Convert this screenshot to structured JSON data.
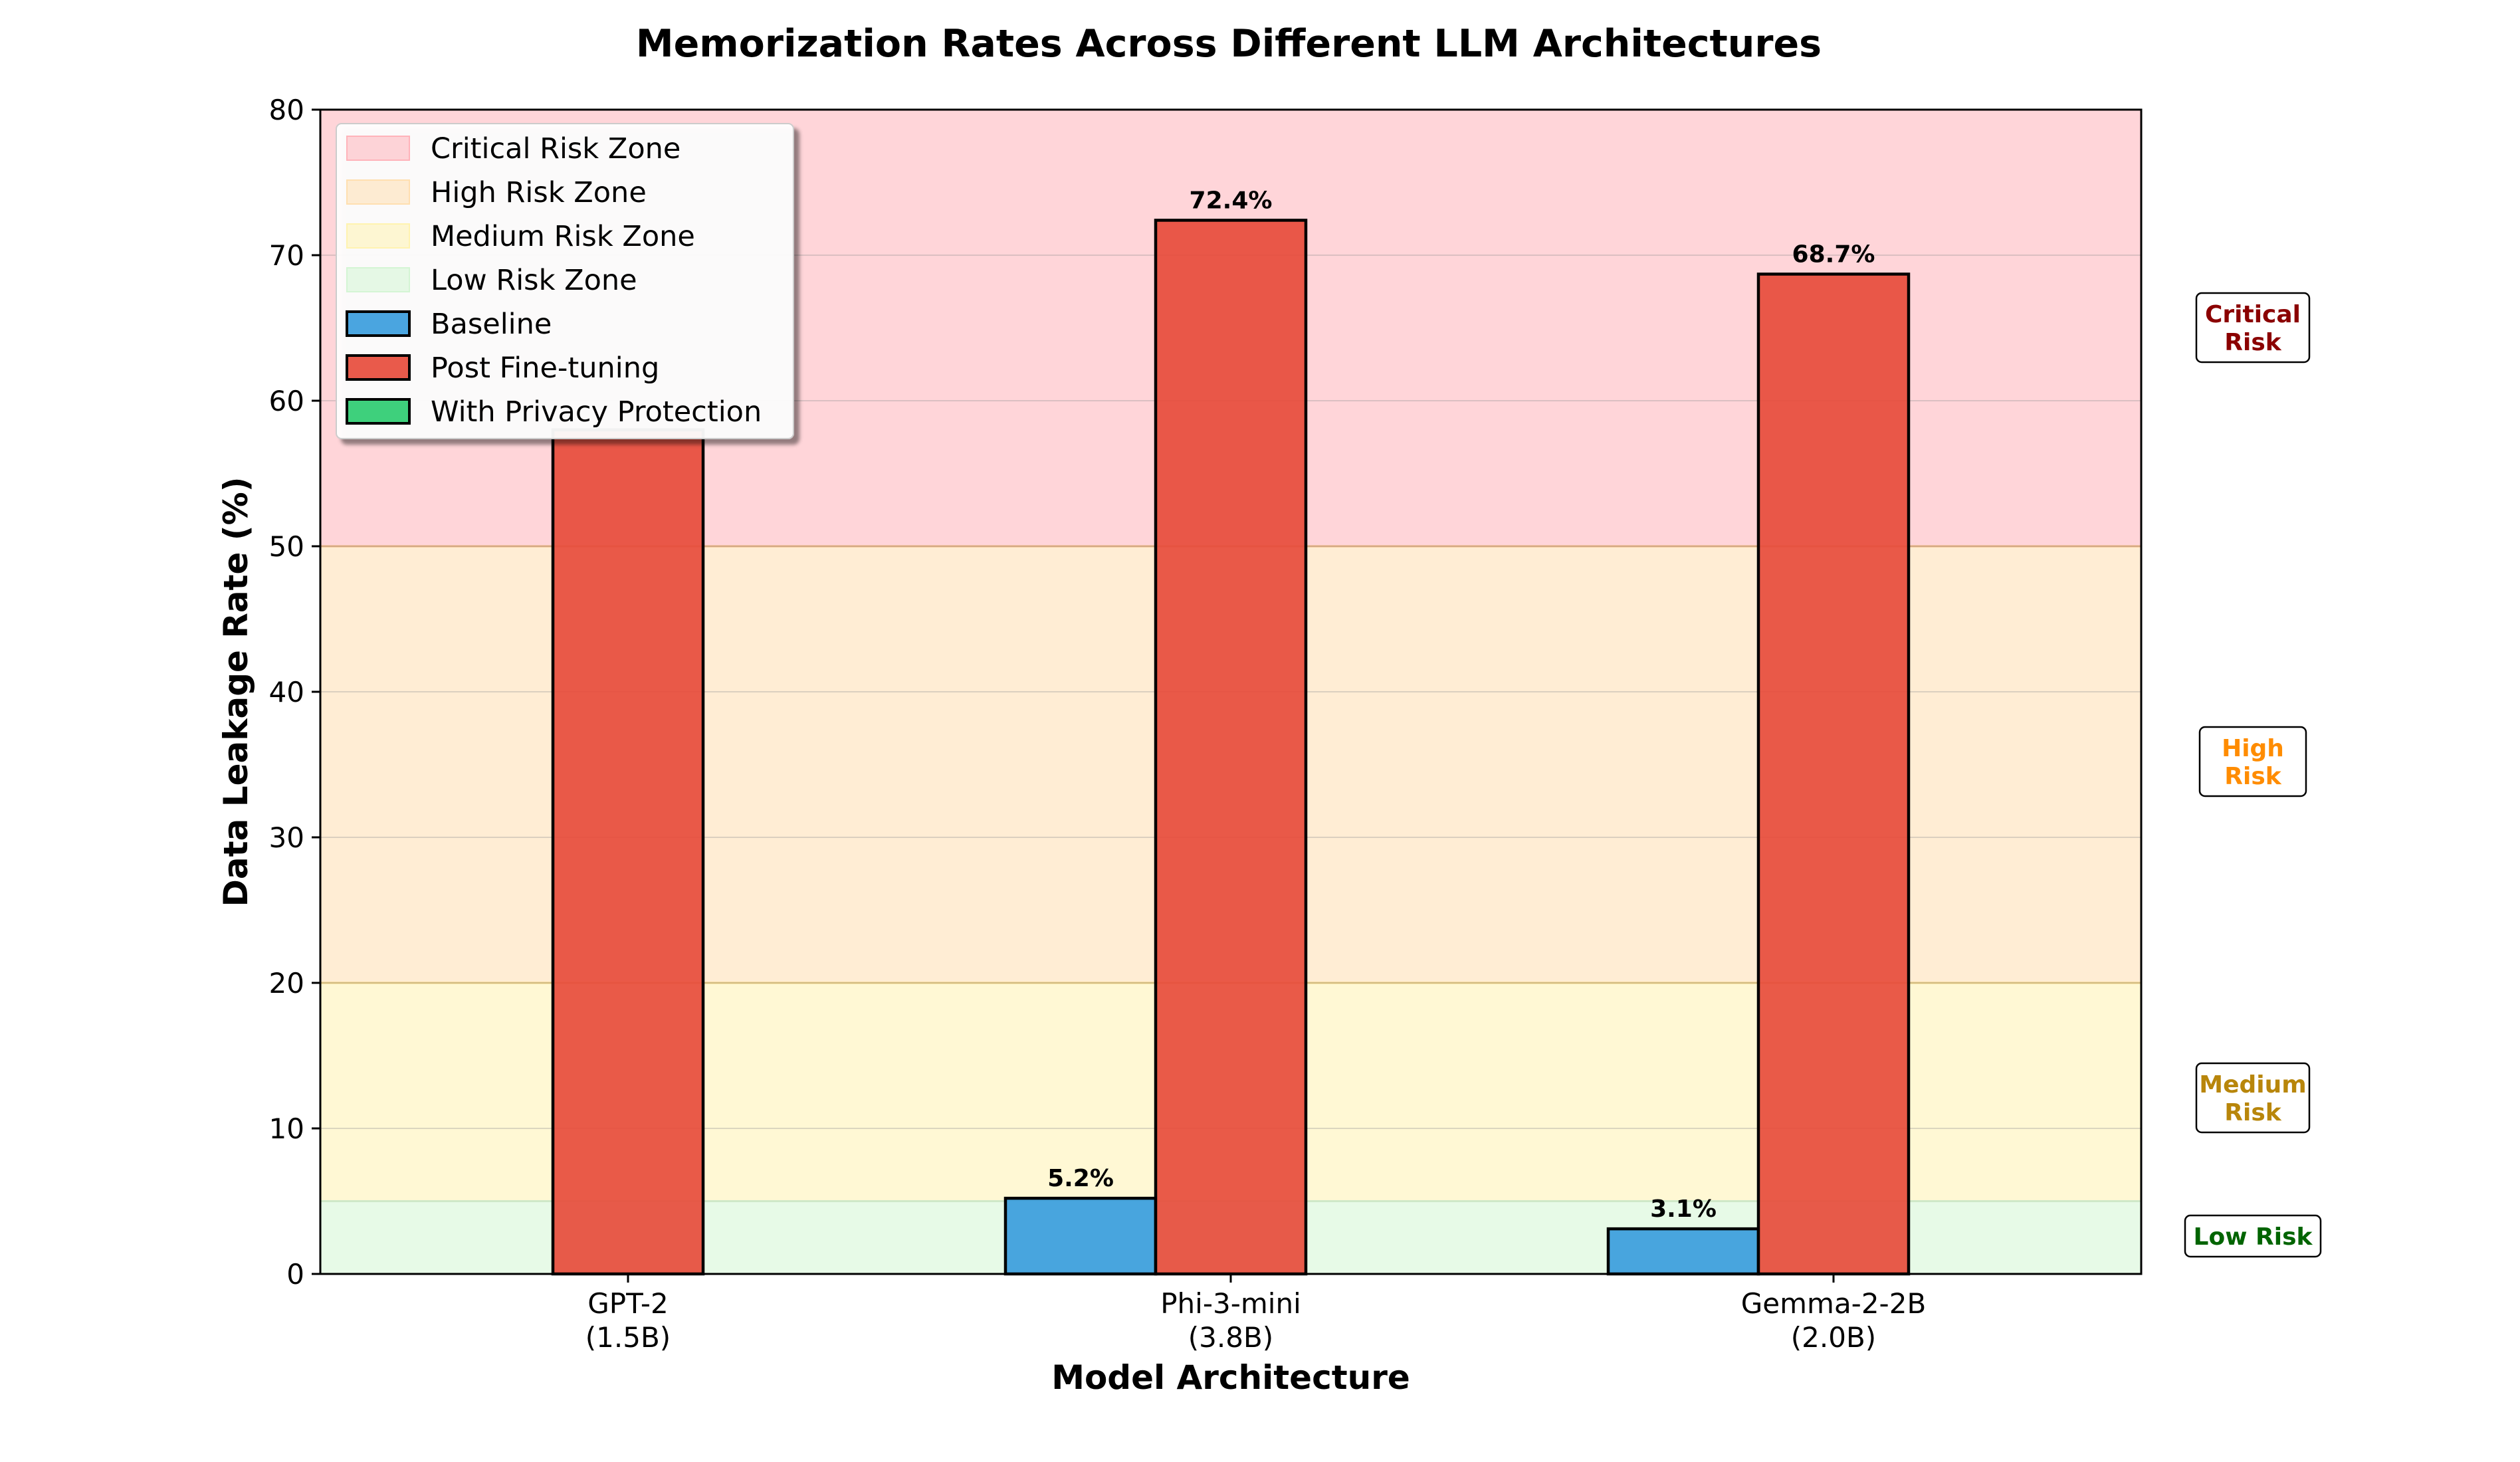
{
  "chart_data": {
    "type": "bar",
    "title": "Memorization Rates Across Different LLM Architectures",
    "xlabel": "Model Architecture",
    "ylabel": "Data Leakage Rate (%)",
    "ylim": [
      0,
      80
    ],
    "yticks": [
      0,
      10,
      20,
      30,
      40,
      50,
      60,
      70,
      80
    ],
    "categories": [
      [
        "GPT-2",
        "(1.5B)"
      ],
      [
        "Phi-3-mini",
        "(3.8B)"
      ],
      [
        "Gemma-2-2B",
        "(2.0B)"
      ]
    ],
    "series": [
      {
        "name": "Baseline",
        "color": "#3b9ddd",
        "values": [
          0,
          5.2,
          3.1
        ],
        "labels": [
          "",
          "5.2%",
          "3.1%"
        ]
      },
      {
        "name": "Post Fine-tuning",
        "color": "#e74c3c",
        "values": [
          58.0,
          72.4,
          68.7
        ],
        "labels": [
          "",
          "72.4%",
          "68.7%"
        ]
      },
      {
        "name": "With Privacy Protection",
        "color": "#2ecc71",
        "values": [
          0,
          0,
          0
        ],
        "labels": [
          "",
          "",
          ""
        ]
      }
    ],
    "zones": [
      {
        "name": "Critical Risk Zone",
        "from": 50,
        "to": 80,
        "color": "#ffb3ba",
        "tag": [
          "Critical",
          "Risk"
        ],
        "tag_color": "#8b0000"
      },
      {
        "name": "High Risk Zone",
        "from": 20,
        "to": 50,
        "color": "#ffdfb0",
        "tag": [
          "High",
          "Risk"
        ],
        "tag_color": "#ff8c00"
      },
      {
        "name": "Medium Risk Zone",
        "from": 5,
        "to": 20,
        "color": "#fff3b0",
        "tag": [
          "Medium",
          "Risk"
        ],
        "tag_color": "#b8860b"
      },
      {
        "name": "Low Risk Zone",
        "from": 0,
        "to": 5,
        "color": "#d4f5d4",
        "tag": [
          "Low Risk"
        ],
        "tag_color": "#006400"
      }
    ],
    "legend_position": "top-left",
    "grid": true
  }
}
